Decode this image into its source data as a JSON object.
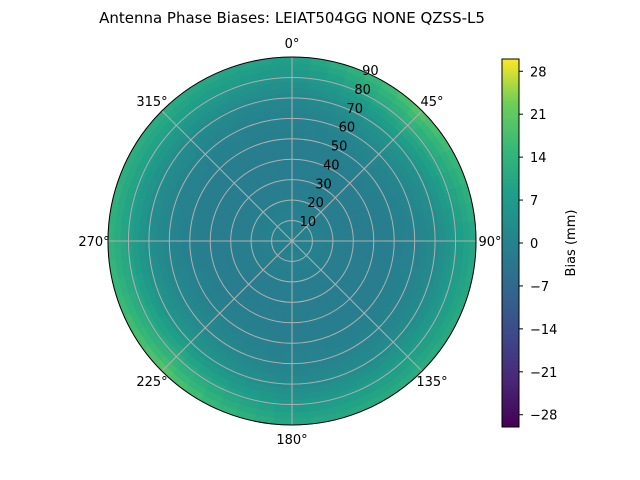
{
  "chart_data": {
    "type": "heatmap",
    "projection": "polar",
    "title": "Antenna Phase Biases: LEIAT504GG      NONE QZSS-L5",
    "angular_ticks": [
      "0°",
      "45°",
      "90°",
      "135°",
      "180°",
      "225°",
      "270°",
      "315°"
    ],
    "radial_ticks": [
      "10",
      "20",
      "30",
      "40",
      "50",
      "60",
      "70",
      "80",
      "90"
    ],
    "radial_range": [
      0,
      90
    ],
    "angular_direction": "clockwise",
    "zero_location": "top",
    "grid": true,
    "colorbar": {
      "label": "Bias (mm)",
      "colormap": "viridis",
      "range": [
        -30,
        30
      ],
      "ticks": [
        "28",
        "21",
        "14",
        "7",
        "0",
        "−7",
        "−14",
        "−21",
        "−28"
      ],
      "tick_values": [
        28,
        21,
        14,
        7,
        0,
        -7,
        -14,
        -21,
        -28
      ]
    },
    "bias_by_zenith": {
      "zenith": [
        0,
        10,
        20,
        30,
        40,
        50,
        60,
        70,
        80,
        90
      ],
      "bias_mm": [
        0,
        -0.5,
        -1,
        -1.5,
        -1.5,
        -1,
        0,
        2,
        6,
        10
      ]
    },
    "edge_extra_by_azimuth": {
      "azimuth": [
        0,
        45,
        90,
        135,
        180,
        225,
        270,
        315,
        360
      ],
      "bias_mm": [
        -2,
        10,
        0,
        2,
        0,
        10,
        4,
        2,
        -2
      ]
    }
  }
}
